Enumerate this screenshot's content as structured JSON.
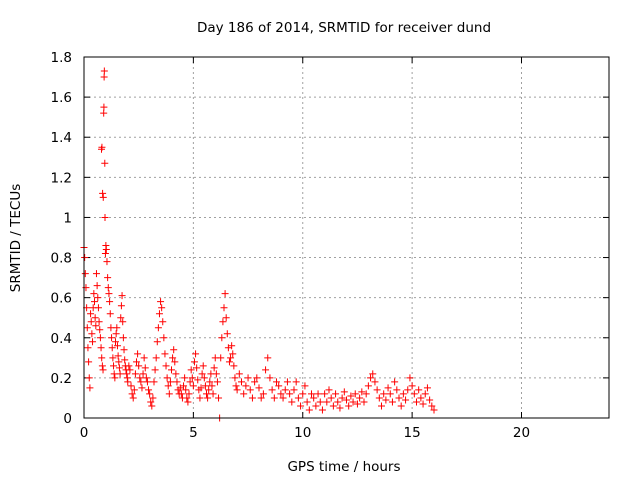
{
  "chart_data": {
    "type": "scatter",
    "title": "Day 186 of 2014, SRMTID for receiver dund",
    "xlabel": "GPS time / hours",
    "ylabel": "SRMTID / TECUs",
    "xlim": [
      0,
      24
    ],
    "ylim": [
      0,
      1.8
    ],
    "x_ticks": [
      0,
      5,
      10,
      15,
      20
    ],
    "x_tick_labels": [
      "0",
      "5",
      "10",
      "15",
      "20"
    ],
    "y_ticks": [
      0,
      0.2,
      0.4,
      0.6,
      0.8,
      1,
      1.2,
      1.4,
      1.6,
      1.8
    ],
    "y_tick_labels": [
      "0",
      "0.2",
      "0.4",
      "0.6",
      "0.8",
      "1",
      "1.2",
      "1.4",
      "1.6",
      "1.8"
    ],
    "grid": true,
    "marker": "+",
    "colors": {
      "points": "#ff0000",
      "grid": "#a0a0a0",
      "axis": "#000000"
    },
    "series": [
      {
        "name": "SRMTID",
        "points": [
          [
            0.0,
            0.85
          ],
          [
            0.03,
            0.8
          ],
          [
            0.06,
            0.72
          ],
          [
            0.09,
            0.65
          ],
          [
            0.12,
            0.55
          ],
          [
            0.15,
            0.45
          ],
          [
            0.18,
            0.35
          ],
          [
            0.21,
            0.28
          ],
          [
            0.24,
            0.2
          ],
          [
            0.27,
            0.15
          ],
          [
            0.3,
            0.52
          ],
          [
            0.33,
            0.48
          ],
          [
            0.36,
            0.42
          ],
          [
            0.39,
            0.38
          ],
          [
            0.42,
            0.55
          ],
          [
            0.45,
            0.62
          ],
          [
            0.48,
            0.58
          ],
          [
            0.51,
            0.5
          ],
          [
            0.54,
            0.46
          ],
          [
            0.57,
            0.72
          ],
          [
            0.6,
            0.66
          ],
          [
            0.63,
            0.6
          ],
          [
            0.66,
            0.55
          ],
          [
            0.69,
            0.48
          ],
          [
            0.72,
            0.44
          ],
          [
            0.75,
            0.4
          ],
          [
            0.78,
            0.35
          ],
          [
            0.81,
            0.3
          ],
          [
            0.84,
            0.26
          ],
          [
            0.87,
            0.24
          ],
          [
            0.8,
            1.34
          ],
          [
            0.82,
            1.35
          ],
          [
            0.85,
            1.12
          ],
          [
            0.88,
            1.1
          ],
          [
            0.9,
            1.52
          ],
          [
            0.91,
            1.55
          ],
          [
            0.92,
            1.7
          ],
          [
            0.93,
            1.73
          ],
          [
            0.95,
            1.27
          ],
          [
            0.96,
            1.0
          ],
          [
            0.98,
            0.82
          ],
          [
            1.0,
            0.86
          ],
          [
            1.02,
            0.84
          ],
          [
            1.05,
            0.78
          ],
          [
            1.08,
            0.7
          ],
          [
            1.11,
            0.65
          ],
          [
            1.14,
            0.62
          ],
          [
            1.17,
            0.58
          ],
          [
            1.2,
            0.52
          ],
          [
            1.23,
            0.45
          ],
          [
            1.26,
            0.4
          ],
          [
            1.29,
            0.35
          ],
          [
            1.32,
            0.3
          ],
          [
            1.35,
            0.26
          ],
          [
            1.38,
            0.22
          ],
          [
            1.41,
            0.2
          ],
          [
            1.44,
            0.38
          ],
          [
            1.47,
            0.42
          ],
          [
            1.5,
            0.45
          ],
          [
            1.53,
            0.36
          ],
          [
            1.56,
            0.31
          ],
          [
            1.59,
            0.28
          ],
          [
            1.62,
            0.25
          ],
          [
            1.65,
            0.22
          ],
          [
            1.68,
            0.5
          ],
          [
            1.71,
            0.56
          ],
          [
            1.74,
            0.61
          ],
          [
            1.77,
            0.48
          ],
          [
            1.8,
            0.4
          ],
          [
            1.83,
            0.34
          ],
          [
            1.86,
            0.29
          ],
          [
            1.89,
            0.26
          ],
          [
            1.92,
            0.24
          ],
          [
            1.95,
            0.22
          ],
          [
            1.98,
            0.2
          ],
          [
            2.0,
            0.18
          ],
          [
            2.05,
            0.26
          ],
          [
            2.1,
            0.24
          ],
          [
            2.15,
            0.16
          ],
          [
            2.2,
            0.12
          ],
          [
            2.25,
            0.1
          ],
          [
            2.3,
            0.14
          ],
          [
            2.35,
            0.22
          ],
          [
            2.4,
            0.28
          ],
          [
            2.45,
            0.32
          ],
          [
            2.5,
            0.26
          ],
          [
            2.55,
            0.2
          ],
          [
            2.6,
            0.18
          ],
          [
            2.65,
            0.15
          ],
          [
            2.7,
            0.22
          ],
          [
            2.75,
            0.3
          ],
          [
            2.8,
            0.25
          ],
          [
            2.85,
            0.2
          ],
          [
            2.9,
            0.18
          ],
          [
            2.95,
            0.14
          ],
          [
            3.0,
            0.12
          ],
          [
            3.05,
            0.08
          ],
          [
            3.1,
            0.06
          ],
          [
            3.15,
            0.1
          ],
          [
            3.2,
            0.18
          ],
          [
            3.25,
            0.24
          ],
          [
            3.3,
            0.3
          ],
          [
            3.35,
            0.38
          ],
          [
            3.4,
            0.45
          ],
          [
            3.45,
            0.52
          ],
          [
            3.5,
            0.58
          ],
          [
            3.55,
            0.55
          ],
          [
            3.6,
            0.48
          ],
          [
            3.65,
            0.4
          ],
          [
            3.7,
            0.32
          ],
          [
            3.75,
            0.26
          ],
          [
            3.8,
            0.2
          ],
          [
            3.85,
            0.16
          ],
          [
            3.9,
            0.12
          ],
          [
            3.95,
            0.18
          ],
          [
            4.0,
            0.24
          ],
          [
            4.05,
            0.3
          ],
          [
            4.1,
            0.34
          ],
          [
            4.15,
            0.28
          ],
          [
            4.2,
            0.22
          ],
          [
            4.25,
            0.18
          ],
          [
            4.3,
            0.14
          ],
          [
            4.35,
            0.12
          ],
          [
            4.4,
            0.15
          ],
          [
            4.45,
            0.12
          ],
          [
            4.5,
            0.1
          ],
          [
            4.55,
            0.16
          ],
          [
            4.6,
            0.2
          ],
          [
            4.65,
            0.14
          ],
          [
            4.7,
            0.1
          ],
          [
            4.75,
            0.08
          ],
          [
            4.8,
            0.12
          ],
          [
            4.85,
            0.18
          ],
          [
            4.9,
            0.24
          ],
          [
            4.95,
            0.2
          ],
          [
            5.0,
            0.16
          ],
          [
            5.05,
            0.28
          ],
          [
            5.1,
            0.32
          ],
          [
            5.15,
            0.25
          ],
          [
            5.2,
            0.19
          ],
          [
            5.25,
            0.14
          ],
          [
            5.3,
            0.1
          ],
          [
            5.35,
            0.15
          ],
          [
            5.4,
            0.22
          ],
          [
            5.45,
            0.26
          ],
          [
            5.5,
            0.2
          ],
          [
            5.55,
            0.16
          ],
          [
            5.6,
            0.12
          ],
          [
            5.65,
            0.1
          ],
          [
            5.7,
            0.14
          ],
          [
            5.75,
            0.18
          ],
          [
            5.8,
            0.22
          ],
          [
            5.85,
            0.16
          ],
          [
            5.9,
            0.12
          ],
          [
            5.95,
            0.25
          ],
          [
            6.0,
            0.3
          ],
          [
            6.05,
            0.22
          ],
          [
            6.1,
            0.18
          ],
          [
            6.15,
            0.1
          ],
          [
            6.2,
            0.0
          ],
          [
            6.25,
            0.3
          ],
          [
            6.3,
            0.4
          ],
          [
            6.35,
            0.48
          ],
          [
            6.4,
            0.55
          ],
          [
            6.45,
            0.62
          ],
          [
            6.5,
            0.5
          ],
          [
            6.55,
            0.42
          ],
          [
            6.6,
            0.35
          ],
          [
            6.65,
            0.28
          ],
          [
            6.7,
            0.3
          ],
          [
            6.75,
            0.36
          ],
          [
            6.8,
            0.32
          ],
          [
            6.85,
            0.26
          ],
          [
            6.9,
            0.2
          ],
          [
            6.95,
            0.16
          ],
          [
            7.0,
            0.14
          ],
          [
            7.1,
            0.22
          ],
          [
            7.2,
            0.18
          ],
          [
            7.3,
            0.12
          ],
          [
            7.4,
            0.16
          ],
          [
            7.5,
            0.2
          ],
          [
            7.6,
            0.14
          ],
          [
            7.7,
            0.1
          ],
          [
            7.8,
            0.18
          ],
          [
            7.9,
            0.2
          ],
          [
            8.0,
            0.15
          ],
          [
            8.1,
            0.1
          ],
          [
            8.2,
            0.12
          ],
          [
            8.3,
            0.24
          ],
          [
            8.4,
            0.3
          ],
          [
            8.5,
            0.2
          ],
          [
            8.6,
            0.14
          ],
          [
            8.7,
            0.1
          ],
          [
            8.8,
            0.18
          ],
          [
            8.9,
            0.16
          ],
          [
            9.0,
            0.12
          ],
          [
            9.1,
            0.1
          ],
          [
            9.2,
            0.14
          ],
          [
            9.3,
            0.18
          ],
          [
            9.4,
            0.12
          ],
          [
            9.5,
            0.08
          ],
          [
            9.6,
            0.14
          ],
          [
            9.7,
            0.18
          ],
          [
            9.8,
            0.1
          ],
          [
            9.9,
            0.06
          ],
          [
            10.0,
            0.12
          ],
          [
            10.1,
            0.16
          ],
          [
            10.2,
            0.08
          ],
          [
            10.3,
            0.04
          ],
          [
            10.4,
            0.12
          ],
          [
            10.5,
            0.1
          ],
          [
            10.6,
            0.06
          ],
          [
            10.7,
            0.12
          ],
          [
            10.8,
            0.08
          ],
          [
            10.9,
            0.04
          ],
          [
            11.0,
            0.12
          ],
          [
            11.1,
            0.08
          ],
          [
            11.2,
            0.14
          ],
          [
            11.3,
            0.1
          ],
          [
            11.4,
            0.06
          ],
          [
            11.5,
            0.12
          ],
          [
            11.6,
            0.08
          ],
          [
            11.7,
            0.05
          ],
          [
            11.8,
            0.1
          ],
          [
            11.9,
            0.13
          ],
          [
            12.0,
            0.09
          ],
          [
            12.1,
            0.06
          ],
          [
            12.2,
            0.11
          ],
          [
            12.3,
            0.08
          ],
          [
            12.4,
            0.12
          ],
          [
            12.5,
            0.07
          ],
          [
            12.6,
            0.1
          ],
          [
            12.7,
            0.13
          ],
          [
            12.8,
            0.08
          ],
          [
            12.9,
            0.12
          ],
          [
            13.0,
            0.16
          ],
          [
            13.1,
            0.2
          ],
          [
            13.2,
            0.22
          ],
          [
            13.3,
            0.18
          ],
          [
            13.4,
            0.14
          ],
          [
            13.5,
            0.1
          ],
          [
            13.6,
            0.06
          ],
          [
            13.7,
            0.12
          ],
          [
            13.8,
            0.09
          ],
          [
            13.9,
            0.15
          ],
          [
            14.0,
            0.12
          ],
          [
            14.1,
            0.08
          ],
          [
            14.2,
            0.18
          ],
          [
            14.3,
            0.14
          ],
          [
            14.4,
            0.1
          ],
          [
            14.5,
            0.06
          ],
          [
            14.6,
            0.12
          ],
          [
            14.7,
            0.09
          ],
          [
            14.8,
            0.14
          ],
          [
            14.9,
            0.2
          ],
          [
            15.0,
            0.16
          ],
          [
            15.1,
            0.12
          ],
          [
            15.2,
            0.08
          ],
          [
            15.3,
            0.14
          ],
          [
            15.4,
            0.1
          ],
          [
            15.5,
            0.07
          ],
          [
            15.6,
            0.12
          ],
          [
            15.7,
            0.15
          ],
          [
            15.8,
            0.09
          ],
          [
            15.9,
            0.06
          ],
          [
            16.0,
            0.04
          ]
        ]
      }
    ]
  }
}
